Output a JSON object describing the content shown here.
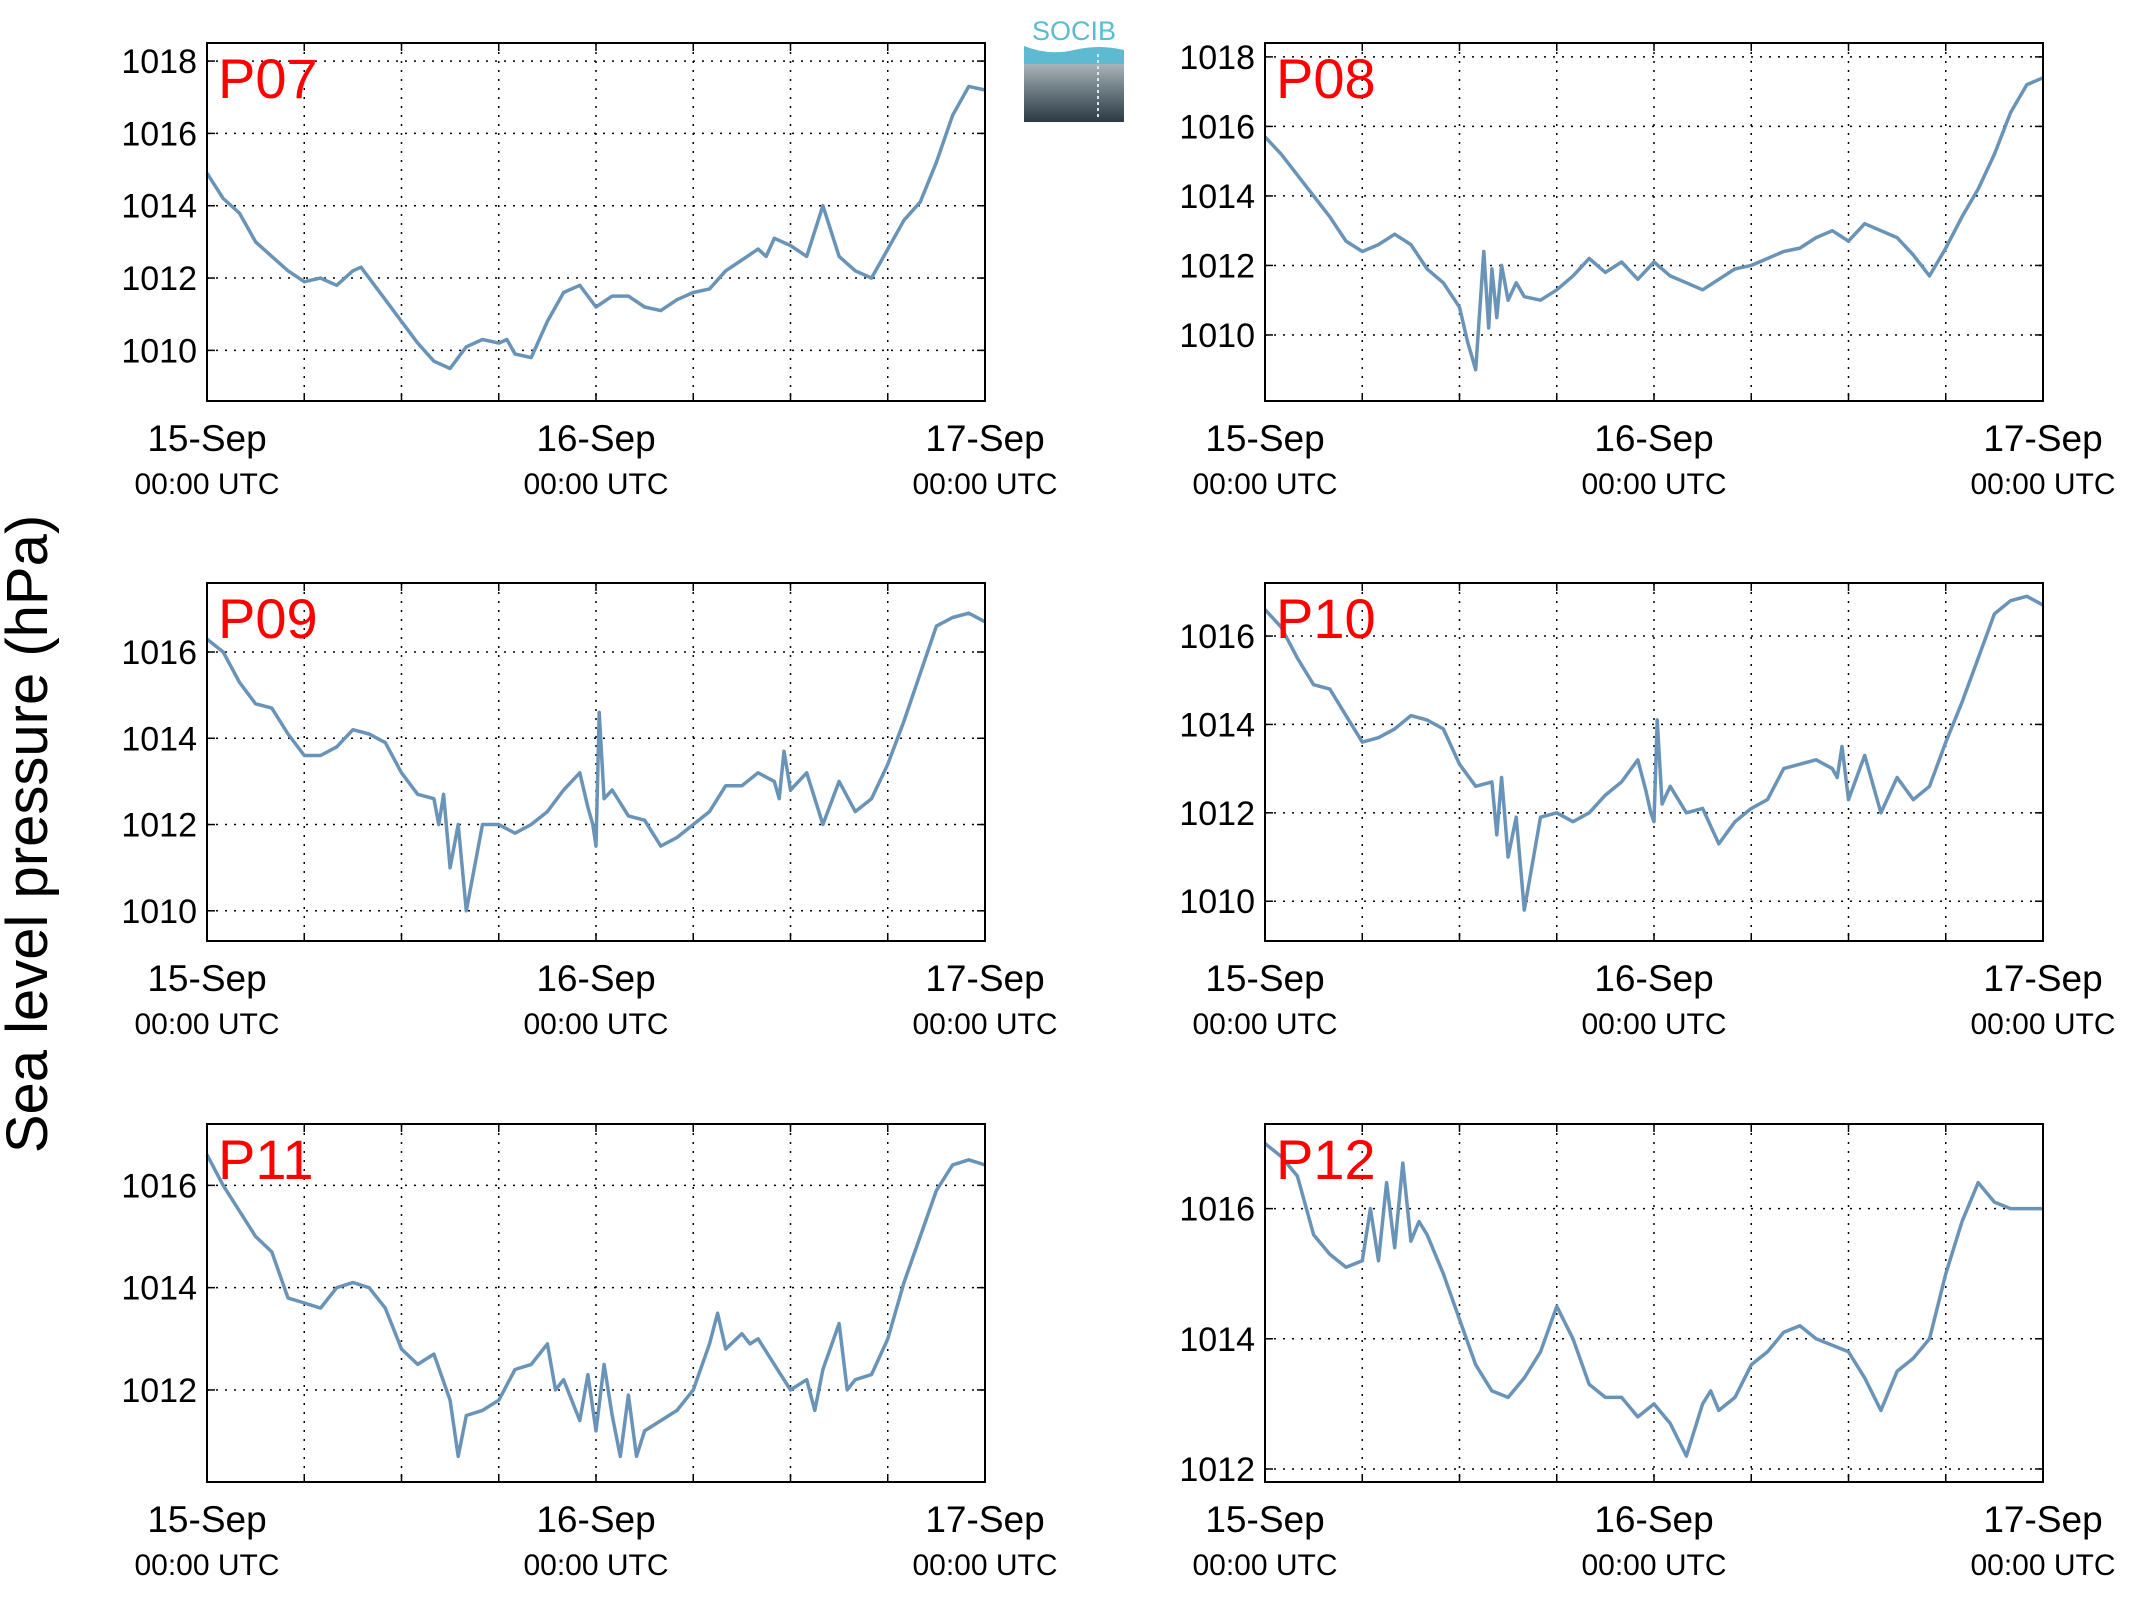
{
  "figure": {
    "ylabel": "Sea level pressure (hPa)",
    "logo_text": "SOCIB",
    "line_color": "#6a93b8",
    "panel_label_color": "#ff0000"
  },
  "chart_data": [
    {
      "type": "line",
      "panel_label": "P07",
      "x_ticks": [
        {
          "date": "15-Sep",
          "time": "00:00 UTC"
        },
        {
          "date": "16-Sep",
          "time": "00:00 UTC"
        },
        {
          "date": "17-Sep",
          "time": "00:00 UTC"
        }
      ],
      "x_range_hours": [
        0,
        48
      ],
      "ylim": [
        1008.6,
        1018.5
      ],
      "yticks": [
        1010,
        1012,
        1014,
        1016,
        1018
      ],
      "grid": true,
      "series": [
        {
          "x": [
            0,
            1,
            2,
            3,
            4,
            5,
            6,
            7,
            8,
            9,
            9.5,
            10,
            11,
            12,
            13,
            14,
            15,
            15.5,
            16,
            17,
            18,
            18.5,
            19,
            20,
            21,
            22,
            23,
            24,
            25,
            26,
            27,
            28,
            29,
            30,
            31,
            32,
            33,
            34,
            34.5,
            35,
            36,
            37,
            38,
            39,
            40,
            41,
            42,
            43,
            44,
            45,
            46,
            47,
            48
          ],
          "y": [
            1014.9,
            1014.2,
            1013.8,
            1013.0,
            1012.6,
            1012.2,
            1011.9,
            1012.0,
            1011.8,
            1012.2,
            1012.3,
            1012.0,
            1011.4,
            1010.8,
            1010.2,
            1009.7,
            1009.5,
            1009.8,
            1010.1,
            1010.3,
            1010.2,
            1010.3,
            1009.9,
            1009.8,
            1010.8,
            1011.6,
            1011.8,
            1011.2,
            1011.5,
            1011.5,
            1011.2,
            1011.1,
            1011.4,
            1011.6,
            1011.7,
            1012.2,
            1012.5,
            1012.8,
            1012.6,
            1013.1,
            1012.9,
            1012.6,
            1014.0,
            1012.6,
            1012.2,
            1012.0,
            1012.8,
            1013.6,
            1014.1,
            1015.2,
            1016.5,
            1017.3,
            1017.2
          ]
        }
      ]
    },
    {
      "type": "line",
      "panel_label": "P08",
      "x_ticks": [
        {
          "date": "15-Sep",
          "time": "00:00 UTC"
        },
        {
          "date": "16-Sep",
          "time": "00:00 UTC"
        },
        {
          "date": "17-Sep",
          "time": "00:00 UTC"
        }
      ],
      "x_range_hours": [
        0,
        48
      ],
      "ylim": [
        1008.1,
        1018.4
      ],
      "yticks": [
        1010,
        1012,
        1014,
        1016,
        1018
      ],
      "grid": true,
      "series": [
        {
          "x": [
            0,
            1,
            2,
            3,
            4,
            5,
            6,
            7,
            8,
            9,
            10,
            11,
            12,
            12.5,
            13,
            13.5,
            13.8,
            14,
            14.3,
            14.6,
            15,
            15.5,
            16,
            17,
            18,
            19,
            20,
            21,
            22,
            23,
            24,
            25,
            26,
            27,
            28,
            29,
            30,
            31,
            32,
            33,
            34,
            35,
            36,
            37,
            38,
            39,
            40,
            41,
            42,
            43,
            44,
            45,
            46,
            47,
            48
          ],
          "y": [
            1015.7,
            1015.2,
            1014.6,
            1014.0,
            1013.4,
            1012.7,
            1012.4,
            1012.6,
            1012.9,
            1012.6,
            1011.9,
            1011.5,
            1010.8,
            1009.8,
            1009.0,
            1012.4,
            1010.2,
            1011.9,
            1010.5,
            1012.0,
            1011.0,
            1011.5,
            1011.1,
            1011.0,
            1011.3,
            1011.7,
            1012.2,
            1011.8,
            1012.1,
            1011.6,
            1012.1,
            1011.7,
            1011.5,
            1011.3,
            1011.6,
            1011.9,
            1012.0,
            1012.2,
            1012.4,
            1012.5,
            1012.8,
            1013.0,
            1012.7,
            1013.2,
            1013.0,
            1012.8,
            1012.3,
            1011.7,
            1012.5,
            1013.4,
            1014.2,
            1015.2,
            1016.4,
            1017.2,
            1017.4
          ]
        }
      ]
    },
    {
      "type": "line",
      "panel_label": "P09",
      "x_ticks": [
        {
          "date": "15-Sep",
          "time": "00:00 UTC"
        },
        {
          "date": "16-Sep",
          "time": "00:00 UTC"
        },
        {
          "date": "17-Sep",
          "time": "00:00 UTC"
        }
      ],
      "x_range_hours": [
        0,
        48
      ],
      "ylim": [
        1009.3,
        1017.6
      ],
      "yticks": [
        1010,
        1012,
        1014,
        1016
      ],
      "grid": true,
      "series": [
        {
          "x": [
            0,
            1,
            2,
            3,
            4,
            5,
            6,
            7,
            8,
            9,
            10,
            11,
            12,
            13,
            14,
            14.3,
            14.6,
            15,
            15.5,
            16,
            17,
            18,
            19,
            20,
            21,
            22,
            23,
            23.5,
            23.8,
            24,
            24.2,
            24.5,
            25,
            26,
            27,
            28,
            29,
            30,
            31,
            32,
            33,
            34,
            35,
            35.3,
            35.6,
            36,
            37,
            38,
            39,
            40,
            41,
            42,
            43,
            44,
            45,
            46,
            47,
            48
          ],
          "y": [
            1016.3,
            1016.0,
            1015.3,
            1014.8,
            1014.7,
            1014.1,
            1013.6,
            1013.6,
            1013.8,
            1014.2,
            1014.1,
            1013.9,
            1013.2,
            1012.7,
            1012.6,
            1012.0,
            1012.7,
            1011.0,
            1012.0,
            1010.0,
            1012.0,
            1012.0,
            1011.8,
            1012.0,
            1012.3,
            1012.8,
            1013.2,
            1012.4,
            1012.0,
            1011.5,
            1014.6,
            1012.6,
            1012.8,
            1012.2,
            1012.1,
            1011.5,
            1011.7,
            1012.0,
            1012.3,
            1012.9,
            1012.9,
            1013.2,
            1013.0,
            1012.6,
            1013.7,
            1012.8,
            1013.2,
            1012.0,
            1013.0,
            1012.3,
            1012.6,
            1013.4,
            1014.4,
            1015.5,
            1016.6,
            1016.8,
            1016.9,
            1016.7
          ]
        }
      ]
    },
    {
      "type": "line",
      "panel_label": "P10",
      "x_ticks": [
        {
          "date": "15-Sep",
          "time": "00:00 UTC"
        },
        {
          "date": "16-Sep",
          "time": "00:00 UTC"
        },
        {
          "date": "17-Sep",
          "time": "00:00 UTC"
        }
      ],
      "x_range_hours": [
        0,
        48
      ],
      "ylim": [
        1009.1,
        1017.2
      ],
      "yticks": [
        1010,
        1012,
        1014,
        1016
      ],
      "grid": true,
      "series": [
        {
          "x": [
            0,
            1,
            2,
            3,
            4,
            5,
            6,
            7,
            8,
            9,
            10,
            11,
            12,
            13,
            14,
            14.3,
            14.6,
            15,
            15.5,
            16,
            17,
            18,
            19,
            20,
            21,
            22,
            23,
            23.5,
            23.8,
            24,
            24.2,
            24.5,
            25,
            26,
            27,
            28,
            29,
            30,
            31,
            32,
            33,
            34,
            35,
            35.3,
            35.6,
            36,
            37,
            38,
            39,
            40,
            41,
            42,
            43,
            44,
            45,
            46,
            47,
            48
          ],
          "y": [
            1016.6,
            1016.2,
            1015.5,
            1014.9,
            1014.8,
            1014.2,
            1013.6,
            1013.7,
            1013.9,
            1014.2,
            1014.1,
            1013.9,
            1013.1,
            1012.6,
            1012.7,
            1011.5,
            1012.8,
            1011.0,
            1011.9,
            1009.8,
            1011.9,
            1012.0,
            1011.8,
            1012.0,
            1012.4,
            1012.7,
            1013.2,
            1012.5,
            1012.0,
            1011.8,
            1014.1,
            1012.2,
            1012.6,
            1012.0,
            1012.1,
            1011.3,
            1011.8,
            1012.1,
            1012.3,
            1013.0,
            1013.1,
            1013.2,
            1013.0,
            1012.8,
            1013.5,
            1012.3,
            1013.3,
            1012.0,
            1012.8,
            1012.3,
            1012.6,
            1013.6,
            1014.5,
            1015.5,
            1016.5,
            1016.8,
            1016.9,
            1016.7
          ]
        }
      ]
    },
    {
      "type": "line",
      "panel_label": "P11",
      "x_ticks": [
        {
          "date": "15-Sep",
          "time": "00:00 UTC"
        },
        {
          "date": "16-Sep",
          "time": "00:00 UTC"
        },
        {
          "date": "17-Sep",
          "time": "00:00 UTC"
        }
      ],
      "x_range_hours": [
        0,
        48
      ],
      "ylim": [
        1010.2,
        1017.2
      ],
      "yticks": [
        1012,
        1014,
        1016
      ],
      "grid": true,
      "series": [
        {
          "x": [
            0,
            1,
            2,
            3,
            4,
            5,
            6,
            7,
            8,
            9,
            10,
            11,
            12,
            13,
            14,
            15,
            15.5,
            16,
            17,
            18,
            19,
            20,
            21,
            21.5,
            22,
            23,
            23.5,
            24,
            24.5,
            25,
            25.5,
            26,
            26.5,
            27,
            28,
            29,
            30,
            31,
            31.5,
            32,
            33,
            33.5,
            34,
            35,
            36,
            37,
            37.5,
            38,
            39,
            39.5,
            40,
            41,
            42,
            43,
            44,
            45,
            46,
            47,
            48
          ],
          "y": [
            1016.6,
            1016.0,
            1015.5,
            1015.0,
            1014.7,
            1013.8,
            1013.7,
            1013.6,
            1014.0,
            1014.1,
            1014.0,
            1013.6,
            1012.8,
            1012.5,
            1012.7,
            1011.8,
            1010.7,
            1011.5,
            1011.6,
            1011.8,
            1012.4,
            1012.5,
            1012.9,
            1012.0,
            1012.2,
            1011.4,
            1012.3,
            1011.2,
            1012.5,
            1011.5,
            1010.7,
            1011.9,
            1010.7,
            1011.2,
            1011.4,
            1011.6,
            1012.0,
            1012.9,
            1013.5,
            1012.8,
            1013.1,
            1012.9,
            1013.0,
            1012.5,
            1012.0,
            1012.2,
            1011.6,
            1012.4,
            1013.3,
            1012.0,
            1012.2,
            1012.3,
            1013.0,
            1014.1,
            1015.0,
            1015.9,
            1016.4,
            1016.5,
            1016.4
          ]
        }
      ]
    },
    {
      "type": "line",
      "panel_label": "P12",
      "x_ticks": [
        {
          "date": "15-Sep",
          "time": "00:00 UTC"
        },
        {
          "date": "16-Sep",
          "time": "00:00 UTC"
        },
        {
          "date": "17-Sep",
          "time": "00:00 UTC"
        }
      ],
      "x_range_hours": [
        0,
        48
      ],
      "ylim": [
        1011.8,
        1017.3
      ],
      "yticks": [
        1012,
        1014,
        1016
      ],
      "grid": true,
      "series": [
        {
          "x": [
            0,
            1,
            2,
            3,
            4,
            5,
            6,
            6.5,
            7,
            7.5,
            8,
            8.5,
            9,
            9.5,
            10,
            11,
            12,
            13,
            14,
            15,
            16,
            17,
            18,
            19,
            20,
            21,
            22,
            23,
            24,
            25,
            26,
            27,
            27.5,
            28,
            29,
            30,
            31,
            32,
            33,
            34,
            35,
            36,
            37,
            38,
            39,
            40,
            41,
            42,
            43,
            44,
            45,
            46,
            47,
            48
          ],
          "y": [
            1017.0,
            1016.8,
            1016.5,
            1015.6,
            1015.3,
            1015.1,
            1015.2,
            1016.0,
            1015.2,
            1016.4,
            1015.4,
            1016.7,
            1015.5,
            1015.8,
            1015.6,
            1015.0,
            1014.3,
            1013.6,
            1013.2,
            1013.1,
            1013.4,
            1013.8,
            1014.5,
            1014.0,
            1013.3,
            1013.1,
            1013.1,
            1012.8,
            1013.0,
            1012.7,
            1012.2,
            1013.0,
            1013.2,
            1012.9,
            1013.1,
            1013.6,
            1013.8,
            1014.1,
            1014.2,
            1014.0,
            1013.9,
            1013.8,
            1013.4,
            1012.9,
            1013.5,
            1013.7,
            1014.0,
            1015.0,
            1015.8,
            1016.4,
            1016.1,
            1016.0,
            1016.0,
            1016.0
          ]
        }
      ]
    }
  ]
}
